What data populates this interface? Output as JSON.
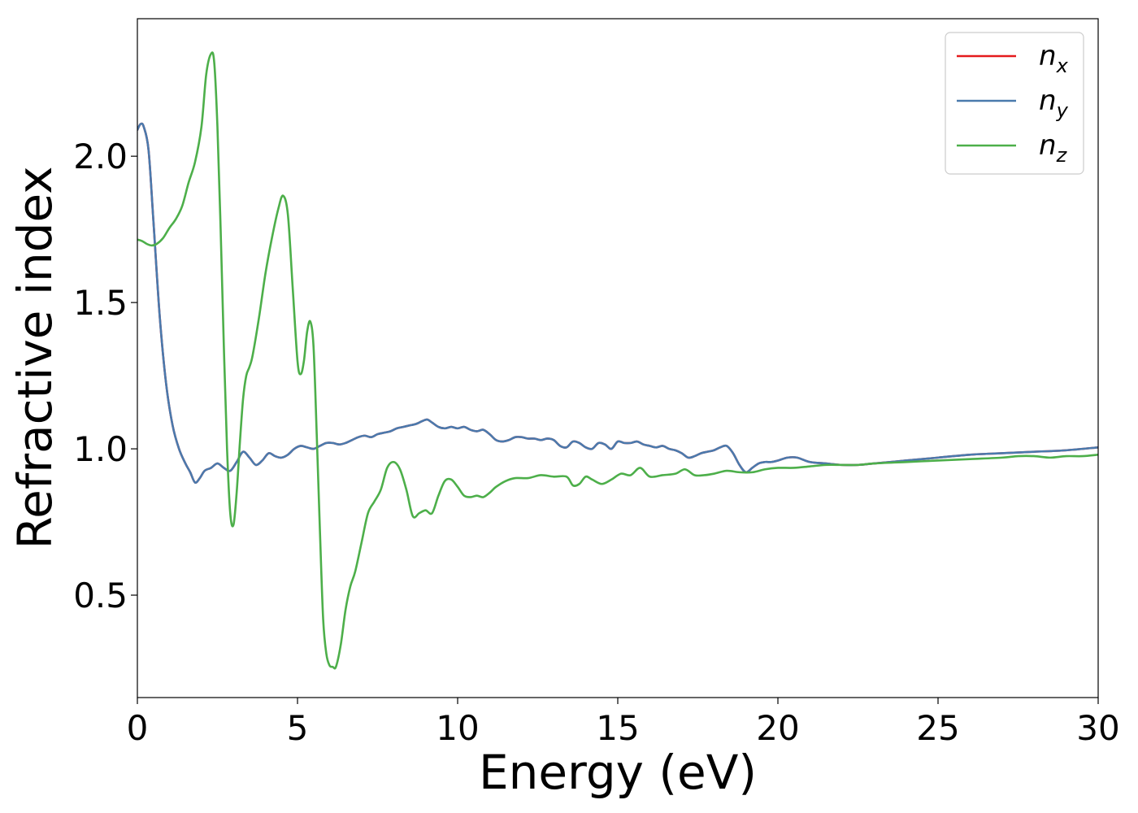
{
  "chart_data": {
    "type": "line",
    "title": "",
    "xlabel": "Energy (eV)",
    "ylabel": "Refractive index",
    "xlim": [
      0,
      30
    ],
    "ylim": [
      0.15,
      2.47
    ],
    "xticks": [
      0,
      5,
      10,
      15,
      20,
      25,
      30
    ],
    "xtick_labels": [
      "0",
      "5",
      "10",
      "15",
      "20",
      "25",
      "30"
    ],
    "yticks": [
      0.5,
      1.0,
      1.5,
      2.0
    ],
    "ytick_labels": [
      "0.5",
      "1.0",
      "1.5",
      "2.0"
    ],
    "grid": false,
    "legend_position": "top-right",
    "series": [
      {
        "name": "n_x",
        "label_base": "n",
        "label_sub": "x",
        "color": "#e41a1c",
        "x": [
          0,
          0.1,
          0.2,
          0.35,
          0.5,
          0.7,
          0.9,
          1.1,
          1.3,
          1.5,
          1.65,
          1.8,
          1.95,
          2.1,
          2.3,
          2.5,
          2.7,
          2.9,
          3.1,
          3.3,
          3.5,
          3.7,
          3.9,
          4.1,
          4.3,
          4.5,
          4.7,
          4.9,
          5.1,
          5.3,
          5.5,
          5.7,
          5.9,
          6.1,
          6.3,
          6.5,
          6.7,
          6.9,
          7.1,
          7.3,
          7.5,
          7.7,
          7.9,
          8.1,
          8.3,
          8.5,
          8.7,
          8.9,
          9.05,
          9.2,
          9.4,
          9.6,
          9.8,
          10.0,
          10.2,
          10.4,
          10.6,
          10.8,
          11.0,
          11.2,
          11.4,
          11.6,
          11.8,
          12.0,
          12.2,
          12.4,
          12.6,
          12.8,
          13.0,
          13.2,
          13.4,
          13.6,
          13.8,
          14.0,
          14.2,
          14.4,
          14.6,
          14.8,
          15.0,
          15.2,
          15.4,
          15.6,
          15.8,
          16.0,
          16.2,
          16.4,
          16.6,
          16.8,
          17.0,
          17.2,
          17.4,
          17.6,
          17.8,
          18.0,
          18.2,
          18.4,
          18.6,
          18.8,
          19.0,
          19.2,
          19.4,
          19.6,
          19.8,
          20.0,
          20.3,
          20.6,
          21.0,
          21.5,
          22.0,
          22.5,
          23.0,
          24.0,
          25.0,
          26.0,
          27.0,
          28.0,
          29.0,
          30.0
        ],
        "y": [
          2.09,
          2.11,
          2.1,
          2.02,
          1.78,
          1.45,
          1.22,
          1.08,
          1.0,
          0.95,
          0.92,
          0.885,
          0.9,
          0.925,
          0.935,
          0.95,
          0.935,
          0.925,
          0.955,
          0.99,
          0.97,
          0.945,
          0.96,
          0.985,
          0.975,
          0.97,
          0.98,
          1.0,
          1.01,
          1.005,
          1.0,
          1.01,
          1.02,
          1.02,
          1.015,
          1.02,
          1.03,
          1.04,
          1.045,
          1.04,
          1.05,
          1.055,
          1.06,
          1.07,
          1.075,
          1.08,
          1.085,
          1.095,
          1.1,
          1.09,
          1.075,
          1.07,
          1.075,
          1.07,
          1.075,
          1.065,
          1.06,
          1.065,
          1.05,
          1.03,
          1.025,
          1.03,
          1.04,
          1.04,
          1.035,
          1.035,
          1.03,
          1.035,
          1.03,
          1.01,
          1.005,
          1.025,
          1.02,
          1.005,
          1.0,
          1.02,
          1.015,
          1.0,
          1.025,
          1.02,
          1.02,
          1.025,
          1.015,
          1.01,
          1.005,
          1.01,
          1.0,
          0.995,
          0.985,
          0.97,
          0.975,
          0.985,
          0.99,
          0.995,
          1.005,
          1.01,
          0.985,
          0.945,
          0.92,
          0.935,
          0.95,
          0.955,
          0.955,
          0.96,
          0.97,
          0.97,
          0.955,
          0.95,
          0.945,
          0.945,
          0.95,
          0.96,
          0.97,
          0.98,
          0.985,
          0.99,
          0.995,
          1.005
        ]
      },
      {
        "name": "n_y",
        "label_base": "n",
        "label_sub": "y",
        "color": "#4a7aad",
        "x": [
          0,
          0.1,
          0.2,
          0.35,
          0.5,
          0.7,
          0.9,
          1.1,
          1.3,
          1.5,
          1.65,
          1.8,
          1.95,
          2.1,
          2.3,
          2.5,
          2.7,
          2.9,
          3.1,
          3.3,
          3.5,
          3.7,
          3.9,
          4.1,
          4.3,
          4.5,
          4.7,
          4.9,
          5.1,
          5.3,
          5.5,
          5.7,
          5.9,
          6.1,
          6.3,
          6.5,
          6.7,
          6.9,
          7.1,
          7.3,
          7.5,
          7.7,
          7.9,
          8.1,
          8.3,
          8.5,
          8.7,
          8.9,
          9.05,
          9.2,
          9.4,
          9.6,
          9.8,
          10.0,
          10.2,
          10.4,
          10.6,
          10.8,
          11.0,
          11.2,
          11.4,
          11.6,
          11.8,
          12.0,
          12.2,
          12.4,
          12.6,
          12.8,
          13.0,
          13.2,
          13.4,
          13.6,
          13.8,
          14.0,
          14.2,
          14.4,
          14.6,
          14.8,
          15.0,
          15.2,
          15.4,
          15.6,
          15.8,
          16.0,
          16.2,
          16.4,
          16.6,
          16.8,
          17.0,
          17.2,
          17.4,
          17.6,
          17.8,
          18.0,
          18.2,
          18.4,
          18.6,
          18.8,
          19.0,
          19.2,
          19.4,
          19.6,
          19.8,
          20.0,
          20.3,
          20.6,
          21.0,
          21.5,
          22.0,
          22.5,
          23.0,
          24.0,
          25.0,
          26.0,
          27.0,
          28.0,
          29.0,
          30.0
        ],
        "y": [
          2.09,
          2.11,
          2.1,
          2.02,
          1.78,
          1.45,
          1.22,
          1.08,
          1.0,
          0.95,
          0.92,
          0.885,
          0.9,
          0.925,
          0.935,
          0.95,
          0.935,
          0.925,
          0.955,
          0.99,
          0.97,
          0.945,
          0.96,
          0.985,
          0.975,
          0.97,
          0.98,
          1.0,
          1.01,
          1.005,
          1.0,
          1.01,
          1.02,
          1.02,
          1.015,
          1.02,
          1.03,
          1.04,
          1.045,
          1.04,
          1.05,
          1.055,
          1.06,
          1.07,
          1.075,
          1.08,
          1.085,
          1.095,
          1.1,
          1.09,
          1.075,
          1.07,
          1.075,
          1.07,
          1.075,
          1.065,
          1.06,
          1.065,
          1.05,
          1.03,
          1.025,
          1.03,
          1.04,
          1.04,
          1.035,
          1.035,
          1.03,
          1.035,
          1.03,
          1.01,
          1.005,
          1.025,
          1.02,
          1.005,
          1.0,
          1.02,
          1.015,
          1.0,
          1.025,
          1.02,
          1.02,
          1.025,
          1.015,
          1.01,
          1.005,
          1.01,
          1.0,
          0.995,
          0.985,
          0.97,
          0.975,
          0.985,
          0.99,
          0.995,
          1.005,
          1.01,
          0.985,
          0.945,
          0.92,
          0.935,
          0.95,
          0.955,
          0.955,
          0.96,
          0.97,
          0.97,
          0.955,
          0.95,
          0.945,
          0.945,
          0.95,
          0.96,
          0.97,
          0.98,
          0.985,
          0.99,
          0.995,
          1.005
        ]
      },
      {
        "name": "n_z",
        "label_base": "n",
        "label_sub": "z",
        "color": "#4daf4a",
        "x": [
          0,
          0.15,
          0.3,
          0.45,
          0.6,
          0.8,
          1.0,
          1.2,
          1.4,
          1.6,
          1.8,
          2.0,
          2.15,
          2.3,
          2.4,
          2.5,
          2.6,
          2.7,
          2.8,
          2.9,
          3.0,
          3.1,
          3.2,
          3.3,
          3.4,
          3.5,
          3.6,
          3.8,
          4.0,
          4.2,
          4.4,
          4.55,
          4.7,
          4.85,
          5.0,
          5.1,
          5.2,
          5.3,
          5.4,
          5.5,
          5.6,
          5.7,
          5.8,
          5.9,
          6.0,
          6.1,
          6.2,
          6.35,
          6.5,
          6.65,
          6.8,
          7.0,
          7.2,
          7.4,
          7.6,
          7.8,
          8.0,
          8.2,
          8.4,
          8.6,
          8.8,
          9.0,
          9.2,
          9.4,
          9.6,
          9.8,
          10.0,
          10.2,
          10.4,
          10.6,
          10.8,
          11.0,
          11.2,
          11.5,
          11.8,
          12.2,
          12.6,
          13.0,
          13.4,
          13.6,
          13.8,
          14.0,
          14.2,
          14.5,
          14.8,
          15.1,
          15.4,
          15.7,
          16.0,
          16.4,
          16.8,
          17.1,
          17.4,
          17.7,
          18.0,
          18.4,
          18.8,
          19.2,
          19.6,
          20.0,
          20.5,
          21.0,
          21.5,
          22.0,
          22.5,
          23.0,
          24.0,
          25.0,
          26.0,
          27.0,
          27.5,
          28.0,
          28.5,
          29.0,
          29.5,
          30.0
        ],
        "y": [
          1.715,
          1.71,
          1.7,
          1.695,
          1.7,
          1.72,
          1.755,
          1.785,
          1.83,
          1.91,
          1.98,
          2.1,
          2.28,
          2.35,
          2.32,
          2.1,
          1.75,
          1.35,
          1.0,
          0.78,
          0.74,
          0.85,
          1.02,
          1.17,
          1.25,
          1.28,
          1.32,
          1.45,
          1.6,
          1.72,
          1.82,
          1.865,
          1.8,
          1.55,
          1.3,
          1.255,
          1.3,
          1.4,
          1.435,
          1.35,
          1.05,
          0.72,
          0.42,
          0.3,
          0.26,
          0.255,
          0.255,
          0.33,
          0.45,
          0.53,
          0.58,
          0.68,
          0.78,
          0.82,
          0.86,
          0.935,
          0.955,
          0.93,
          0.86,
          0.77,
          0.78,
          0.79,
          0.78,
          0.84,
          0.89,
          0.895,
          0.87,
          0.84,
          0.835,
          0.84,
          0.835,
          0.85,
          0.87,
          0.89,
          0.9,
          0.9,
          0.91,
          0.905,
          0.905,
          0.875,
          0.88,
          0.905,
          0.895,
          0.88,
          0.895,
          0.915,
          0.91,
          0.935,
          0.905,
          0.91,
          0.915,
          0.93,
          0.91,
          0.91,
          0.915,
          0.925,
          0.92,
          0.92,
          0.93,
          0.935,
          0.935,
          0.94,
          0.945,
          0.945,
          0.945,
          0.95,
          0.955,
          0.96,
          0.965,
          0.97,
          0.975,
          0.975,
          0.97,
          0.975,
          0.975,
          0.98
        ]
      }
    ]
  }
}
